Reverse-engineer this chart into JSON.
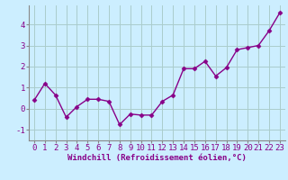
{
  "x": [
    0,
    1,
    2,
    3,
    4,
    5,
    6,
    7,
    8,
    9,
    10,
    11,
    12,
    13,
    14,
    15,
    16,
    17,
    18,
    19,
    20,
    21,
    22,
    23
  ],
  "y": [
    0.4,
    1.2,
    0.65,
    -0.4,
    0.1,
    0.45,
    0.45,
    0.35,
    -0.75,
    -0.25,
    -0.3,
    -0.3,
    0.35,
    0.65,
    1.9,
    1.9,
    2.25,
    1.55,
    1.95,
    2.8,
    2.9,
    3.0,
    3.7,
    4.55
  ],
  "line_color": "#880088",
  "marker": "D",
  "marker_size": 2.5,
  "bg_color": "#cceeff",
  "grid_color": "#aacccc",
  "xlabel": "Windchill (Refroidissement éolien,°C)",
  "xlim": [
    -0.5,
    23.5
  ],
  "ylim": [
    -1.5,
    4.9
  ],
  "yticks": [
    -1,
    0,
    1,
    2,
    3,
    4
  ],
  "xticks": [
    0,
    1,
    2,
    3,
    4,
    5,
    6,
    7,
    8,
    9,
    10,
    11,
    12,
    13,
    14,
    15,
    16,
    17,
    18,
    19,
    20,
    21,
    22,
    23
  ],
  "xlabel_fontsize": 6.5,
  "tick_fontsize": 6.5,
  "linewidth": 1.0
}
